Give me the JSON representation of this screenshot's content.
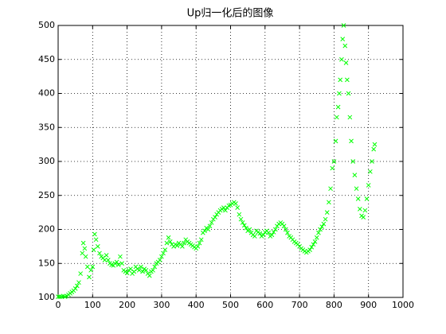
{
  "chart_data": {
    "type": "scatter",
    "title": "Up归一化后的图像",
    "x": [
      0,
      5,
      10,
      15,
      20,
      25,
      30,
      35,
      40,
      45,
      50,
      55,
      60,
      65,
      70,
      73,
      77,
      80,
      85,
      90,
      95,
      100,
      103,
      106,
      110,
      115,
      120,
      125,
      130,
      135,
      140,
      145,
      150,
      155,
      160,
      165,
      170,
      175,
      180,
      185,
      190,
      195,
      200,
      205,
      210,
      215,
      220,
      225,
      230,
      235,
      240,
      245,
      250,
      255,
      260,
      265,
      270,
      275,
      280,
      285,
      290,
      295,
      300,
      305,
      310,
      315,
      320,
      325,
      330,
      335,
      340,
      345,
      350,
      355,
      360,
      365,
      370,
      375,
      380,
      385,
      390,
      395,
      400,
      405,
      410,
      415,
      420,
      425,
      430,
      435,
      440,
      445,
      450,
      455,
      460,
      465,
      470,
      475,
      480,
      485,
      490,
      495,
      500,
      505,
      510,
      515,
      520,
      525,
      530,
      535,
      540,
      545,
      550,
      555,
      560,
      565,
      570,
      575,
      580,
      585,
      590,
      595,
      600,
      605,
      610,
      615,
      620,
      625,
      630,
      635,
      640,
      645,
      650,
      655,
      660,
      665,
      670,
      675,
      680,
      685,
      690,
      695,
      700,
      705,
      710,
      715,
      720,
      725,
      730,
      735,
      740,
      745,
      750,
      755,
      760,
      765,
      770,
      775,
      780,
      785,
      790,
      795,
      800,
      805,
      808,
      812,
      815,
      818,
      822,
      825,
      828,
      832,
      835,
      838,
      842,
      846,
      850,
      855,
      860,
      865,
      870,
      875,
      880,
      885,
      890,
      895,
      900,
      905,
      910,
      915,
      918
    ],
    "values": [
      101,
      101,
      101,
      102,
      101,
      102,
      104,
      106,
      108,
      110,
      113,
      117,
      122,
      135,
      165,
      180,
      172,
      160,
      145,
      130,
      140,
      145,
      170,
      193,
      185,
      175,
      165,
      160,
      158,
      155,
      162,
      155,
      150,
      148,
      147,
      150,
      152,
      148,
      160,
      150,
      140,
      138,
      136,
      140,
      142,
      135,
      138,
      145,
      142,
      140,
      145,
      138,
      142,
      140,
      135,
      132,
      138,
      140,
      145,
      150,
      152,
      155,
      160,
      165,
      170,
      180,
      188,
      182,
      178,
      175,
      178,
      176,
      180,
      178,
      175,
      180,
      185,
      182,
      180,
      178,
      176,
      174,
      172,
      175,
      180,
      185,
      195,
      198,
      202,
      200,
      205,
      210,
      215,
      218,
      222,
      225,
      228,
      230,
      232,
      228,
      232,
      235,
      236,
      238,
      240,
      238,
      232,
      222,
      215,
      210,
      206,
      202,
      198,
      200,
      195,
      192,
      190,
      198,
      196,
      194,
      190,
      192,
      196,
      198,
      195,
      190,
      192,
      196,
      200,
      205,
      208,
      210,
      208,
      205,
      200,
      195,
      190,
      188,
      185,
      182,
      180,
      178,
      175,
      172,
      170,
      168,
      166,
      168,
      170,
      174,
      178,
      182,
      188,
      195,
      200,
      204,
      208,
      215,
      225,
      240,
      260,
      290,
      300,
      330,
      365,
      380,
      400,
      420,
      450,
      480,
      500,
      470,
      445,
      420,
      400,
      365,
      330,
      300,
      280,
      260,
      245,
      230,
      220,
      218,
      228,
      245,
      265,
      285,
      300,
      318,
      325
    ],
    "color": "#00ff00",
    "xlim": [
      0,
      1000
    ],
    "xticks": [
      0,
      100,
      200,
      300,
      400,
      500,
      600,
      700,
      800,
      900,
      1000
    ],
    "ylim": [
      100,
      500
    ],
    "yticks": [
      100,
      150,
      200,
      250,
      300,
      350,
      400,
      450,
      500
    ],
    "grid": true
  }
}
